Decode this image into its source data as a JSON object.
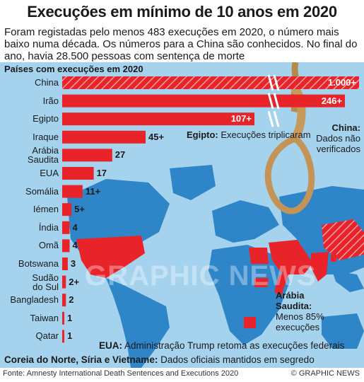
{
  "title": "Execuções em mínimo de 10 anos em 2020",
  "subtitle": "Foram registadas pelo menos 483 execuções em 2020, o número mais baixo numa década. Os números para a China são conhecidos. No final do ano, havia 28.500 pessoas com sentença de morte",
  "chart_label": "Países com execuções em 2020",
  "notes": {
    "egypt": {
      "title": "Egipto:",
      "text": "Execuções triplicaram"
    },
    "china": {
      "title": "China:",
      "line1": "Dados não",
      "line2": "verificados"
    },
    "saudi": {
      "title1": "Arábia",
      "title2": "Saudita:",
      "line1": "Menos 85%",
      "line2": "execuções"
    },
    "usa": {
      "title": "EUA:",
      "text": "Administração Trump retoma as execuções federais"
    },
    "nk": {
      "title": "Coreia do Norte, Síria e Vietname:",
      "text": "Dados oficiais mantidos em segredo"
    }
  },
  "footer": {
    "source": "Fonte: Amnesty International Death Sentences and Executions 2020",
    "credit": "© GRAPHIC NEWS"
  },
  "watermark": "GRAPHIC NEWS",
  "colors": {
    "bar": "#e8232a",
    "map_background": "#a5d3ee",
    "land": "#2e86c9",
    "executing_country": "#e8232a"
  },
  "chart_data": {
    "type": "bar",
    "orientation": "horizontal",
    "title": "Países com execuções em 2020",
    "categories": [
      "China",
      "Irão",
      "Egipto",
      "Iraque",
      "Arábia Saudita",
      "EUA",
      "Somália",
      "Iémen",
      "Índia",
      "Omã",
      "Botswana",
      "Sudão do Sul",
      "Bangladesh",
      "Taiwan",
      "Qatar"
    ],
    "labels": [
      "1.000+",
      "246+",
      "107+",
      "45+",
      "27",
      "17",
      "11+",
      "5+",
      "4",
      "4",
      "3",
      "2+",
      "2",
      "1",
      "1"
    ],
    "values": [
      1000,
      246,
      107,
      45,
      27,
      17,
      11,
      5,
      4,
      4,
      3,
      2,
      2,
      1,
      1
    ],
    "label_lines": [
      [
        "China"
      ],
      [
        "Irão"
      ],
      [
        "Egipto"
      ],
      [
        "Iraque"
      ],
      [
        "Arábia",
        "Saudita"
      ],
      [
        "EUA"
      ],
      [
        "Somália"
      ],
      [
        "Iémen"
      ],
      [
        "Índia"
      ],
      [
        "Omã"
      ],
      [
        "Botswana"
      ],
      [
        "Sudão",
        "do Sul"
      ],
      [
        "Bangladesh"
      ],
      [
        "Taiwan"
      ],
      [
        "Qatar"
      ]
    ],
    "hatched": [
      true,
      false,
      false,
      false,
      false,
      false,
      false,
      false,
      false,
      false,
      false,
      false,
      false,
      false,
      false
    ],
    "broken_scale": [
      true,
      true,
      true,
      false,
      false,
      false,
      false,
      false,
      false,
      false,
      false,
      false,
      false,
      false,
      false
    ]
  }
}
